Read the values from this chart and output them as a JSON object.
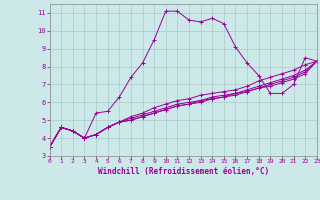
{
  "xlabel": "Windchill (Refroidissement éolien,°C)",
  "bg_color": "#cce8e8",
  "line_color": "#990099",
  "grid_color": "#aacccc",
  "xlim": [
    0,
    23
  ],
  "ylim": [
    3,
    11.5
  ],
  "xticks": [
    0,
    1,
    2,
    3,
    4,
    5,
    6,
    7,
    8,
    9,
    10,
    11,
    12,
    13,
    14,
    15,
    16,
    17,
    18,
    19,
    20,
    21,
    22,
    23
  ],
  "yticks": [
    3,
    4,
    5,
    6,
    7,
    8,
    9,
    10,
    11
  ],
  "series": [
    [
      3.5,
      4.6,
      4.4,
      4.0,
      5.4,
      5.5,
      6.3,
      7.4,
      8.2,
      9.5,
      11.1,
      11.1,
      10.6,
      10.5,
      10.7,
      10.4,
      9.1,
      8.2,
      7.5,
      6.5,
      6.5,
      7.0,
      8.5,
      8.3
    ],
    [
      3.5,
      4.6,
      4.4,
      4.0,
      4.2,
      4.6,
      4.9,
      5.2,
      5.4,
      5.7,
      5.9,
      6.1,
      6.2,
      6.4,
      6.5,
      6.6,
      6.7,
      6.9,
      7.2,
      7.4,
      7.6,
      7.8,
      8.1,
      8.3
    ],
    [
      3.5,
      4.6,
      4.4,
      4.0,
      4.2,
      4.6,
      4.9,
      5.1,
      5.3,
      5.5,
      5.7,
      5.9,
      6.0,
      6.1,
      6.3,
      6.4,
      6.5,
      6.7,
      6.9,
      7.1,
      7.3,
      7.5,
      7.8,
      8.3
    ],
    [
      3.5,
      4.6,
      4.4,
      4.0,
      4.2,
      4.6,
      4.9,
      5.0,
      5.2,
      5.4,
      5.6,
      5.8,
      5.9,
      6.1,
      6.2,
      6.3,
      6.5,
      6.6,
      6.8,
      7.0,
      7.2,
      7.4,
      7.7,
      8.3
    ],
    [
      3.5,
      4.6,
      4.4,
      4.0,
      4.2,
      4.6,
      4.9,
      5.0,
      5.2,
      5.4,
      5.6,
      5.8,
      5.9,
      6.0,
      6.2,
      6.3,
      6.4,
      6.6,
      6.8,
      6.9,
      7.1,
      7.3,
      7.6,
      8.3
    ]
  ]
}
